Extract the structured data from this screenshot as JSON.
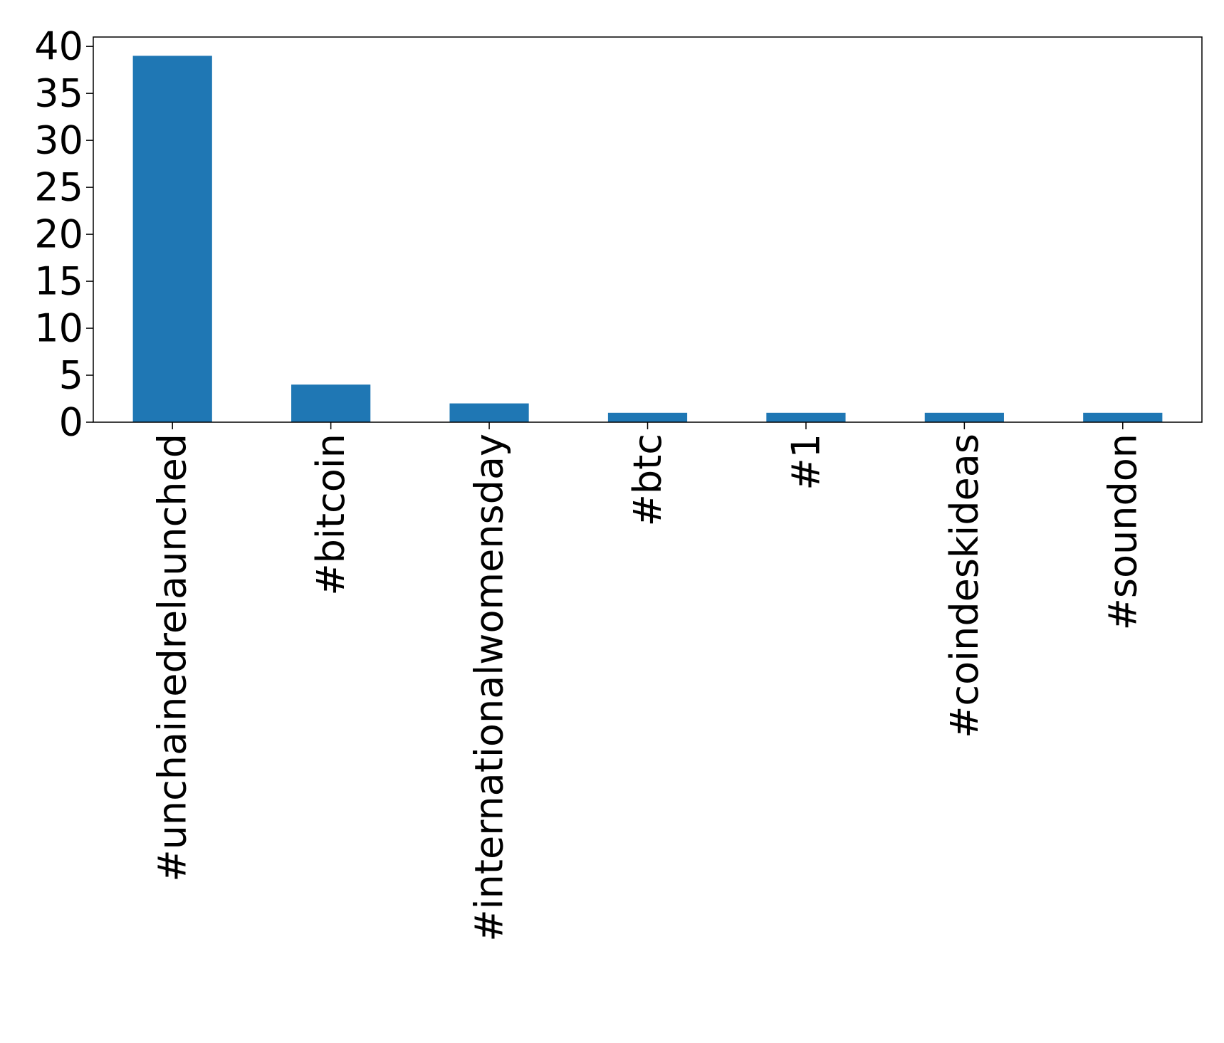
{
  "chart_data": {
    "type": "bar",
    "title": "",
    "xlabel": "",
    "ylabel": "",
    "categories": [
      "#unchainedrelaunched",
      "#bitcoin",
      "#internationalwomensday",
      "#btc",
      "#1",
      "#coindeskideas",
      "#soundon"
    ],
    "values": [
      39,
      4,
      2,
      1,
      1,
      1,
      1
    ],
    "ylim": [
      0,
      41
    ],
    "yticks": [
      0,
      5,
      10,
      15,
      20,
      25,
      30,
      35,
      40
    ],
    "bar_color": "#1f77b4",
    "grid": false,
    "legend": "none",
    "x_tick_rotation": "vertical"
  }
}
